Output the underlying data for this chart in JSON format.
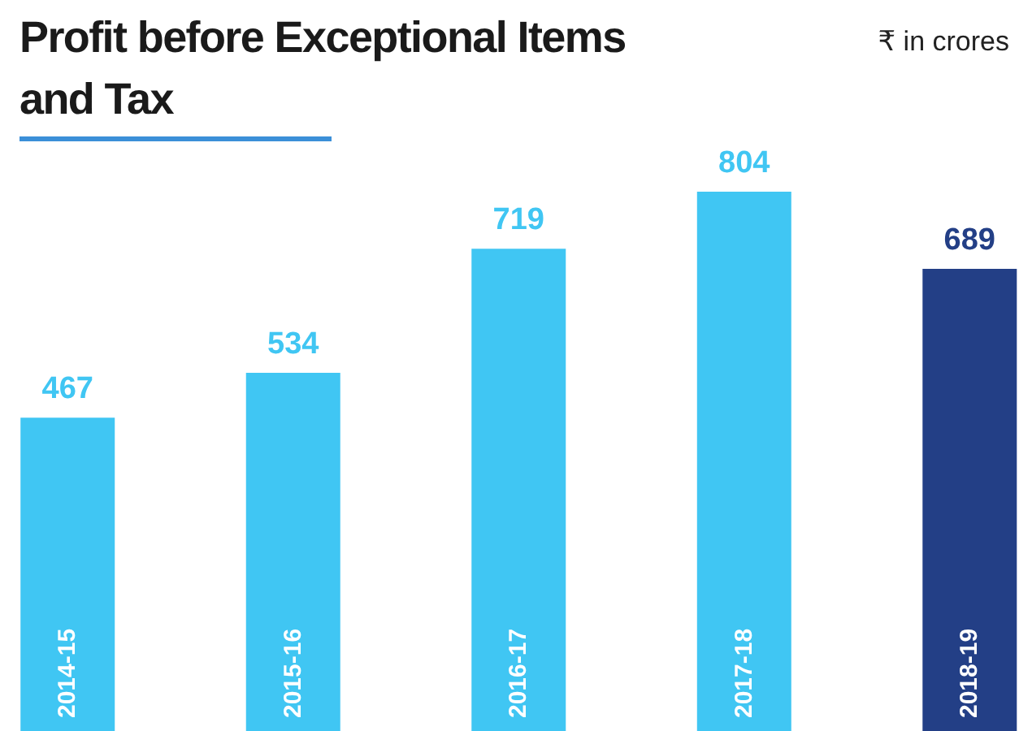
{
  "chart_data": {
    "type": "bar",
    "title": "Profit before Exceptional Items and Tax",
    "subtitle": "₹ in crores",
    "categories": [
      "2014-15",
      "2015-16",
      "2016-17",
      "2017-18",
      "2018-19"
    ],
    "values": [
      467,
      534,
      719,
      804,
      689
    ],
    "colors": [
      "#40c6f3",
      "#40c6f3",
      "#40c6f3",
      "#40c6f3",
      "#233f86"
    ],
    "data_labels": true
  }
}
